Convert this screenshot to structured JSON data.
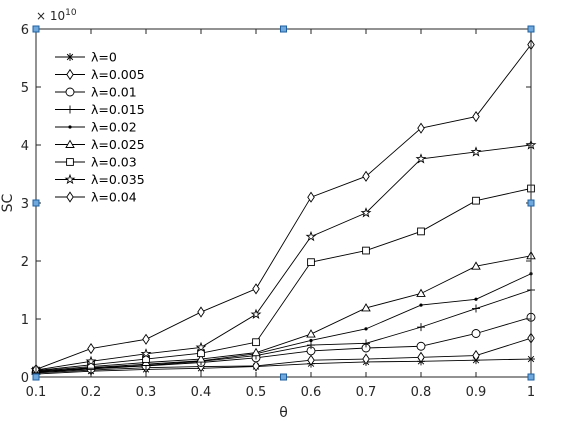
{
  "chart_data": {
    "type": "line",
    "x": [
      0.1,
      0.2,
      0.3,
      0.4,
      0.5,
      0.6,
      0.7,
      0.8,
      0.9,
      1
    ],
    "xlabel": "θ",
    "ylabel": "SC",
    "xlim": [
      0.1,
      1
    ],
    "ylim": [
      0,
      6
    ],
    "x_ticks": [
      "0.1",
      "0.2",
      "0.3",
      "0.4",
      "0.5",
      "0.6",
      "0.7",
      "0.8",
      "0.9",
      "1"
    ],
    "y_ticks": [
      "0",
      "1",
      "2",
      "3",
      "4",
      "5",
      "6"
    ],
    "y_exponent": {
      "base": "× 10",
      "power": "10"
    },
    "grid": false,
    "legend_position": "top-left",
    "line_color": "#000000",
    "series": [
      {
        "name": "λ=0",
        "marker": "asterisk",
        "values": [
          0.05,
          0.1,
          0.13,
          0.15,
          0.18,
          0.23,
          0.26,
          0.27,
          0.29,
          0.31
        ]
      },
      {
        "name": "λ=0.005",
        "marker": "diamond",
        "values": [
          0.07,
          0.12,
          0.16,
          0.18,
          0.19,
          0.29,
          0.31,
          0.34,
          0.37,
          0.67
        ]
      },
      {
        "name": "λ=0.01",
        "marker": "circle",
        "values": [
          0.08,
          0.14,
          0.19,
          0.25,
          0.33,
          0.45,
          0.5,
          0.53,
          0.75,
          1.03
        ]
      },
      {
        "name": "λ=0.015",
        "marker": "plus",
        "values": [
          0.09,
          0.15,
          0.2,
          0.27,
          0.37,
          0.55,
          0.58,
          0.86,
          1.18,
          1.5
        ]
      },
      {
        "name": "λ=0.02",
        "marker": "dot",
        "values": [
          0.09,
          0.16,
          0.22,
          0.28,
          0.4,
          0.63,
          0.83,
          1.24,
          1.34,
          1.78
        ]
      },
      {
        "name": "λ=0.025",
        "marker": "triangle",
        "values": [
          0.1,
          0.18,
          0.25,
          0.31,
          0.42,
          0.74,
          1.19,
          1.44,
          1.91,
          2.09
        ]
      },
      {
        "name": "λ=0.03",
        "marker": "square",
        "values": [
          0.11,
          0.21,
          0.31,
          0.41,
          0.6,
          1.98,
          2.18,
          2.51,
          3.04,
          3.25
        ]
      },
      {
        "name": "λ=0.035",
        "marker": "star",
        "values": [
          0.12,
          0.27,
          0.4,
          0.51,
          1.08,
          2.42,
          2.83,
          3.76,
          3.88,
          4.0
        ]
      },
      {
        "name": "λ=0.04",
        "marker": "diamond",
        "values": [
          0.13,
          0.49,
          0.65,
          1.12,
          1.52,
          3.1,
          3.46,
          4.29,
          4.49,
          5.73
        ]
      }
    ]
  }
}
